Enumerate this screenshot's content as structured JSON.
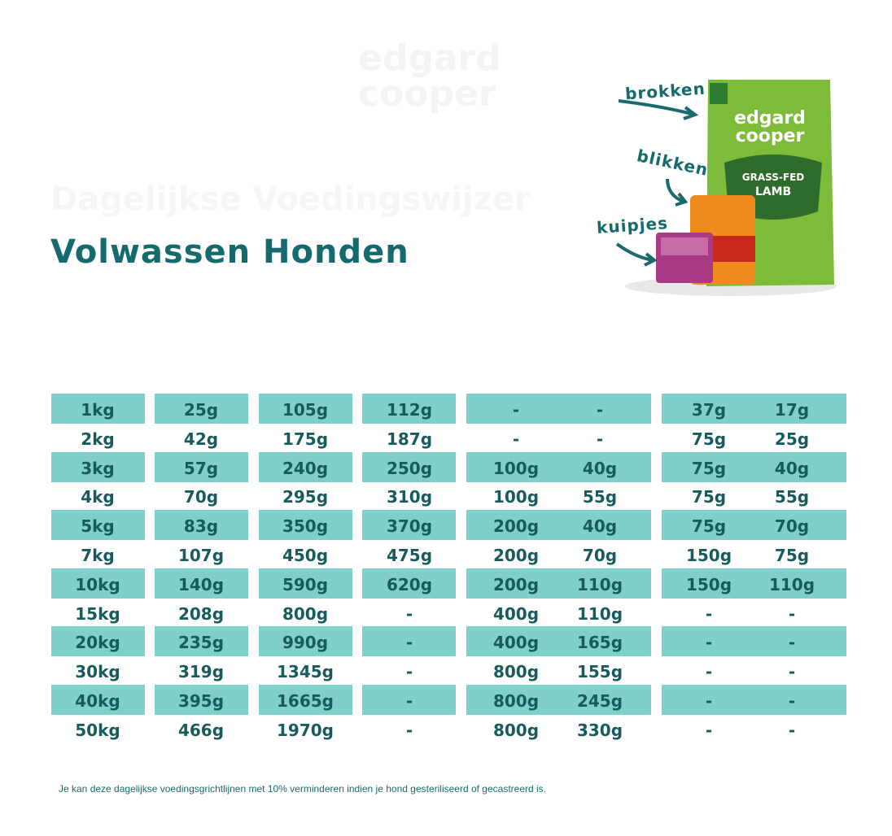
{
  "logo": [
    "edgard",
    "cooper"
  ],
  "faded_title": "Dagelijkse Voedingswijzer",
  "title": "Volwassen Honden",
  "product_labels": [
    "brokken",
    "blikken",
    "kuipjes"
  ],
  "table": {
    "rows": [
      [
        "1kg",
        "25g",
        "105g",
        "112g",
        "-",
        "-",
        "37g",
        "17g"
      ],
      [
        "2kg",
        "42g",
        "175g",
        "187g",
        "-",
        "-",
        "75g",
        "25g"
      ],
      [
        "3kg",
        "57g",
        "240g",
        "250g",
        "100g",
        "40g",
        "75g",
        "40g"
      ],
      [
        "4kg",
        "70g",
        "295g",
        "310g",
        "100g",
        "55g",
        "75g",
        "55g"
      ],
      [
        "5kg",
        "83g",
        "350g",
        "370g",
        "200g",
        "40g",
        "75g",
        "70g"
      ],
      [
        "7kg",
        "107g",
        "450g",
        "475g",
        "200g",
        "70g",
        "150g",
        "75g"
      ],
      [
        "10kg",
        "140g",
        "590g",
        "620g",
        "200g",
        "110g",
        "150g",
        "110g"
      ],
      [
        "15kg",
        "208g",
        "800g",
        "-",
        "400g",
        "110g",
        "-",
        "-"
      ],
      [
        "20kg",
        "235g",
        "990g",
        "-",
        "400g",
        "165g",
        "-",
        "-"
      ],
      [
        "30kg",
        "319g",
        "1345g",
        "-",
        "800g",
        "155g",
        "-",
        "-"
      ],
      [
        "40kg",
        "395g",
        "1665g",
        "-",
        "800g",
        "245g",
        "-",
        "-"
      ],
      [
        "50kg",
        "466g",
        "1970g",
        "-",
        "800g",
        "330g",
        "-",
        "-"
      ]
    ]
  },
  "note": "Je kan deze dagelijkse voedingsgrichtlijnen met 10% verminderen indien je hond gesteriliseerd of gecastreerd is."
}
